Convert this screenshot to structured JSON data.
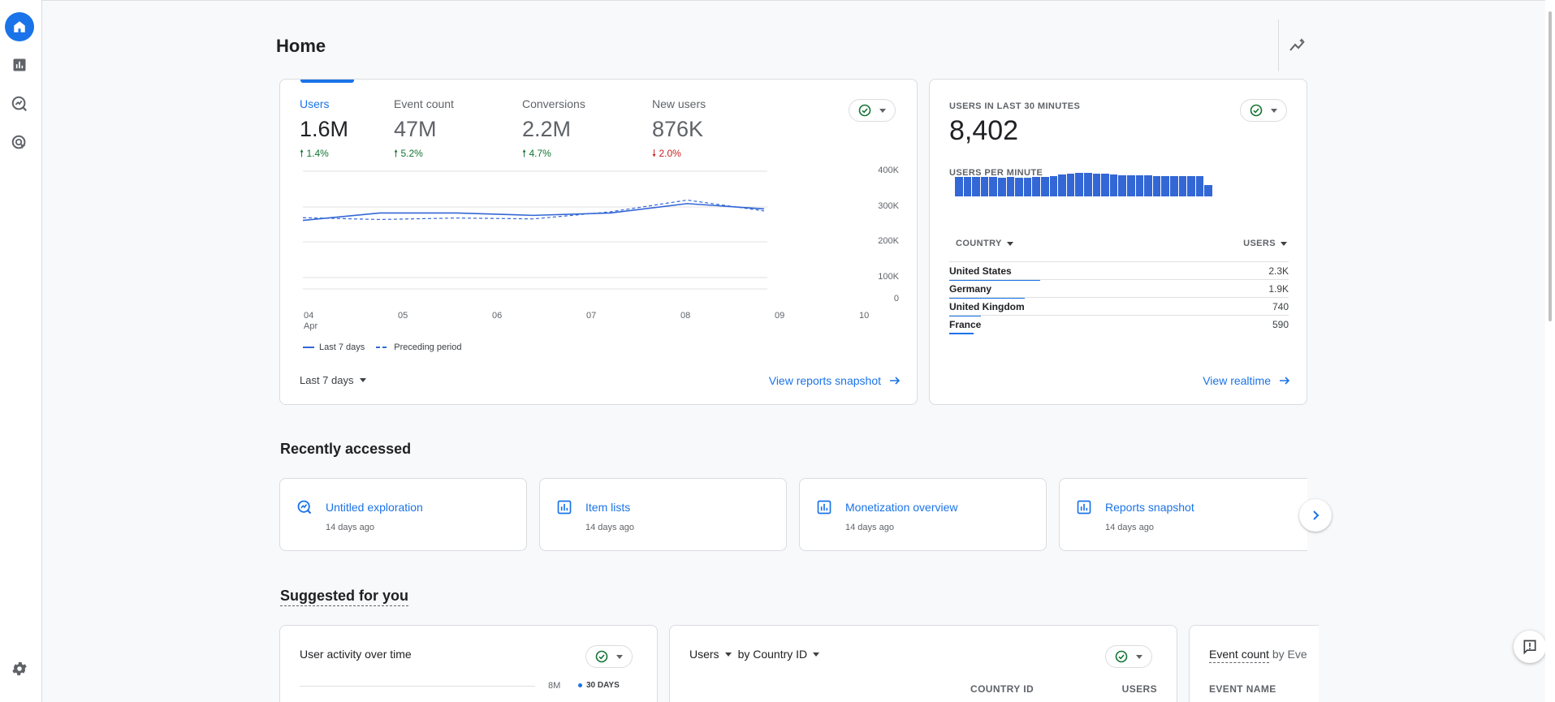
{
  "page": {
    "title": "Home"
  },
  "nav": {
    "items": [
      {
        "icon": "home-icon",
        "active": true
      },
      {
        "icon": "reports-icon",
        "active": false
      },
      {
        "icon": "explore-icon",
        "active": false
      },
      {
        "icon": "advertising-icon",
        "active": false
      }
    ],
    "settings_icon": "gear-icon"
  },
  "metrics": [
    {
      "label": "Users",
      "value": "1.6M",
      "change": "1.4%",
      "direction": "up"
    },
    {
      "label": "Event count",
      "value": "47M",
      "change": "5.2%",
      "direction": "up"
    },
    {
      "label": "Conversions",
      "value": "2.2M",
      "change": "4.7%",
      "direction": "up"
    },
    {
      "label": "New users",
      "value": "876K",
      "change": "2.0%",
      "direction": "down"
    }
  ],
  "chart_data": {
    "type": "line",
    "x": [
      "04",
      "05",
      "06",
      "07",
      "08",
      "09",
      "10"
    ],
    "x_sublabel": "Apr",
    "y_ticks": [
      "400K",
      "300K",
      "200K",
      "100K",
      "0"
    ],
    "ylim": [
      0,
      400000
    ],
    "grid": true,
    "legend_position": "bottom-left",
    "series": [
      {
        "name": "Last 7 days",
        "style": "solid",
        "values": [
          233000,
          258000,
          258000,
          250000,
          258000,
          290000,
          272000
        ]
      },
      {
        "name": "Preceding period",
        "style": "dashed",
        "values": [
          242000,
          236000,
          241000,
          238000,
          262000,
          302000,
          265000
        ]
      }
    ]
  },
  "main_card": {
    "date_range": "Last 7 days",
    "link": "View reports snapshot"
  },
  "realtime": {
    "caption": "USERS IN LAST 30 MINUTES",
    "value": "8,402",
    "sub_caption": "USERS PER MINUTE",
    "per_minute_bars": [
      0.75,
      0.74,
      0.74,
      0.75,
      0.74,
      0.73,
      0.74,
      0.72,
      0.72,
      0.74,
      0.74,
      0.77,
      0.85,
      0.88,
      0.92,
      0.92,
      0.88,
      0.86,
      0.85,
      0.81,
      0.8,
      0.8,
      0.8,
      0.78,
      0.77,
      0.77,
      0.77,
      0.77,
      0.79,
      0.43
    ],
    "country_header": "COUNTRY",
    "users_header": "USERS",
    "rows": [
      {
        "country": "United States",
        "users": "2.3K",
        "share": 1.0
      },
      {
        "country": "Germany",
        "users": "1.9K",
        "share": 0.83
      },
      {
        "country": "United Kingdom",
        "users": "740",
        "share": 0.35
      },
      {
        "country": "France",
        "users": "590",
        "share": 0.27
      }
    ],
    "link": "View realtime"
  },
  "recent": {
    "title": "Recently accessed",
    "items": [
      {
        "icon": "explore-icon",
        "title": "Untitled exploration",
        "time": "14 days ago"
      },
      {
        "icon": "report-icon",
        "title": "Item lists",
        "time": "14 days ago"
      },
      {
        "icon": "report-icon",
        "title": "Monetization overview",
        "time": "14 days ago"
      },
      {
        "icon": "report-icon",
        "title": "Reports snapshot",
        "time": "14 days ago"
      }
    ]
  },
  "suggested": {
    "title": "Suggested for you",
    "card1": {
      "title": "User activity over time",
      "axis_value": "8M",
      "legend": "30 DAYS"
    },
    "card2": {
      "metric": "Users",
      "dimension": "by Country ID",
      "col1": "COUNTRY ID",
      "col2": "USERS"
    },
    "card3": {
      "metric": "Event count",
      "dimension": "by Eve",
      "col1": "EVENT NAME"
    }
  }
}
